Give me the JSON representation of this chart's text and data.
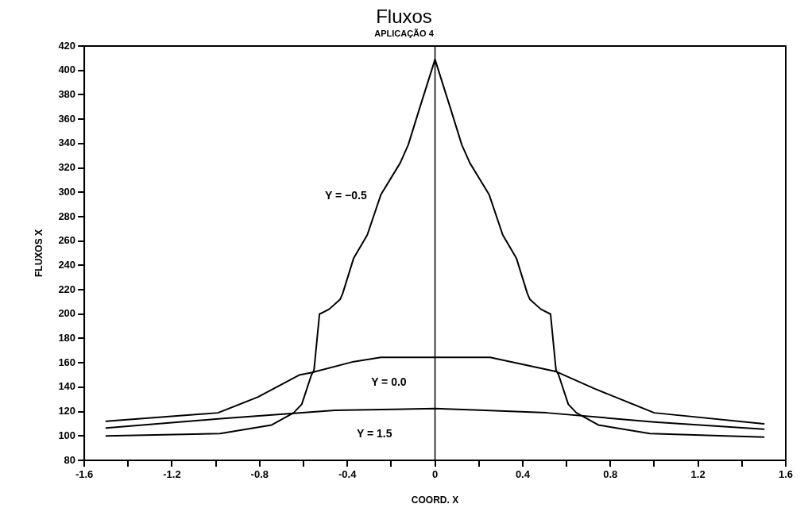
{
  "chart_data": {
    "type": "line",
    "title": "Fluxos",
    "subtitle": "APLICAÇÃO 4",
    "xlabel": "COORD. X",
    "ylabel": "FLUXOS X",
    "xlim": [
      -1.6,
      1.6
    ],
    "xticks": [
      -1.6,
      {
        "value": -1.4,
        "label": null
      },
      -1.2,
      {
        "value": -1.0,
        "label": null
      },
      -0.8,
      {
        "value": -0.6,
        "label": null
      },
      -0.4,
      {
        "value": -0.2,
        "label": null
      },
      0,
      {
        "value": 0.2,
        "label": null
      },
      0.4,
      {
        "value": 0.6,
        "label": null
      },
      0.8,
      {
        "value": 1.0,
        "label": null
      },
      1.2,
      {
        "value": 1.4,
        "label": null
      },
      1.6
    ],
    "ylim": [
      80,
      420
    ],
    "yticks": [
      80,
      100,
      120,
      140,
      160,
      180,
      200,
      220,
      240,
      260,
      280,
      300,
      320,
      340,
      360,
      380,
      400,
      420
    ],
    "grid": false,
    "legend": false,
    "marker": "none",
    "line_style": "solid",
    "ref_lines": [
      {
        "axis": "x",
        "value": 0,
        "color": "#000000"
      }
    ],
    "series": [
      {
        "name": "Y = −0.5",
        "color": "#000000",
        "x": [
          -1.5,
          -0.98,
          -0.745,
          -0.645,
          -0.608,
          -0.564,
          -0.552,
          -0.527,
          -0.483,
          -0.433,
          -0.421,
          -0.371,
          -0.309,
          -0.247,
          -0.159,
          -0.122,
          -0.072,
          0,
          0.072,
          0.122,
          0.159,
          0.247,
          0.309,
          0.371,
          0.421,
          0.433,
          0.483,
          0.527,
          0.552,
          0.564,
          0.608,
          0.645,
          0.745,
          0.98,
          1.5
        ],
        "values": [
          100,
          102,
          109,
          119,
          126,
          150,
          154,
          200,
          204,
          212,
          217,
          246,
          265,
          298,
          324,
          339,
          368,
          409,
          368,
          339,
          324,
          298,
          265,
          246,
          217,
          212,
          204,
          200,
          154,
          150,
          126,
          119,
          109,
          102,
          99
        ]
      },
      {
        "name": "Y = 0.0",
        "color": "#000000",
        "x": [
          -1.5,
          -0.99,
          -0.807,
          -0.62,
          -0.564,
          -0.371,
          -0.247,
          0,
          0.251,
          0.55,
          0.725,
          1.0,
          1.5
        ],
        "values": [
          112,
          119,
          132,
          150,
          152,
          161,
          164.5,
          164.5,
          164.5,
          153,
          139,
          119,
          110
        ]
      },
      {
        "name": "Y = 1.5",
        "color": "#000000",
        "x": [
          -1.5,
          -0.99,
          -0.458,
          0,
          0.227,
          0.51,
          1.0,
          1.5
        ],
        "values": [
          106.5,
          114,
          121,
          122.5,
          121,
          119,
          111.5,
          105.5
        ]
      }
    ]
  }
}
